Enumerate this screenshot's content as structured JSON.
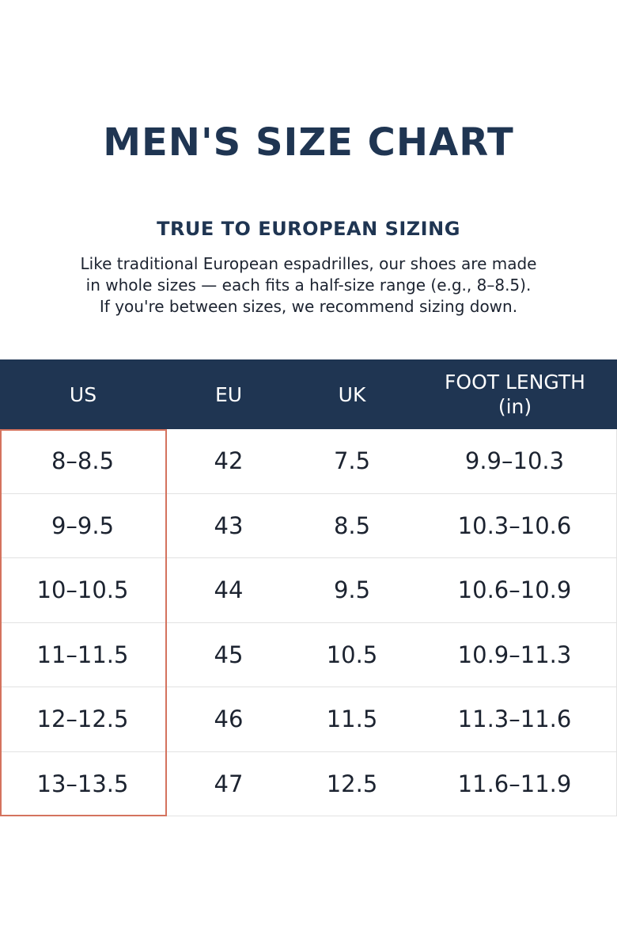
{
  "header": {
    "title": "MEN'S SIZE CHART",
    "subtitle": "TRUE TO EUROPEAN SIZING",
    "description": [
      "Like traditional European espadrilles, our shoes are made",
      "in whole sizes — each fits a half-size range (e.g., 8–8.5).",
      "If you're between sizes, we recommend sizing down."
    ]
  },
  "table": {
    "columns": [
      "US",
      "EU",
      "UK",
      "FOOT LENGTH (in)"
    ],
    "rows": [
      [
        "8–8.5",
        "42",
        "7.5",
        "9.9–10.3"
      ],
      [
        "9–9.5",
        "43",
        "8.5",
        "10.3–10.6"
      ],
      [
        "10–10.5",
        "44",
        "9.5",
        "10.6–10.9"
      ],
      [
        "11–11.5",
        "45",
        "10.5",
        "10.9–11.3"
      ],
      [
        "12–12.5",
        "46",
        "11.5",
        "11.3–11.6"
      ],
      [
        "13–13.5",
        "47",
        "12.5",
        "11.6–11.9"
      ]
    ]
  }
}
